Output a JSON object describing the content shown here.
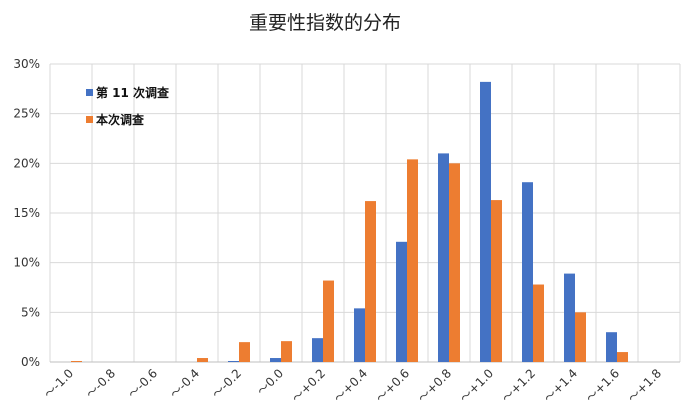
{
  "chart_data": {
    "type": "bar",
    "title": "重要性指数的分布",
    "xlabel": "",
    "ylabel": "",
    "categories": [
      "～-1.0",
      "～-0.8",
      "～-0.6",
      "～-0.4",
      "～-0.2",
      "～0.0",
      "～+0.2",
      "～+0.4",
      "～+0.6",
      "～+0.8",
      "～+1.0",
      "～+1.2",
      "～+1.4",
      "～+1.6",
      "～+1.8"
    ],
    "series": [
      {
        "name": "第 11 次调查",
        "color": "#4472C4",
        "values": [
          0.0,
          0.0,
          0.0,
          0.0,
          0.1,
          0.4,
          2.4,
          5.4,
          12.1,
          21.0,
          28.2,
          18.1,
          8.9,
          3.0,
          0.0
        ]
      },
      {
        "name": "本次调查",
        "color": "#ED7D31",
        "values": [
          0.1,
          0.0,
          0.0,
          0.4,
          2.0,
          2.1,
          8.2,
          16.2,
          20.4,
          20.0,
          16.3,
          7.8,
          5.0,
          1.0,
          0.0
        ]
      }
    ],
    "ylim": [
      0,
      30
    ],
    "yticks": [
      "0%",
      "5%",
      "10%",
      "15%",
      "20%",
      "25%",
      "30%"
    ],
    "grid": true,
    "legend_position": "top-left"
  }
}
